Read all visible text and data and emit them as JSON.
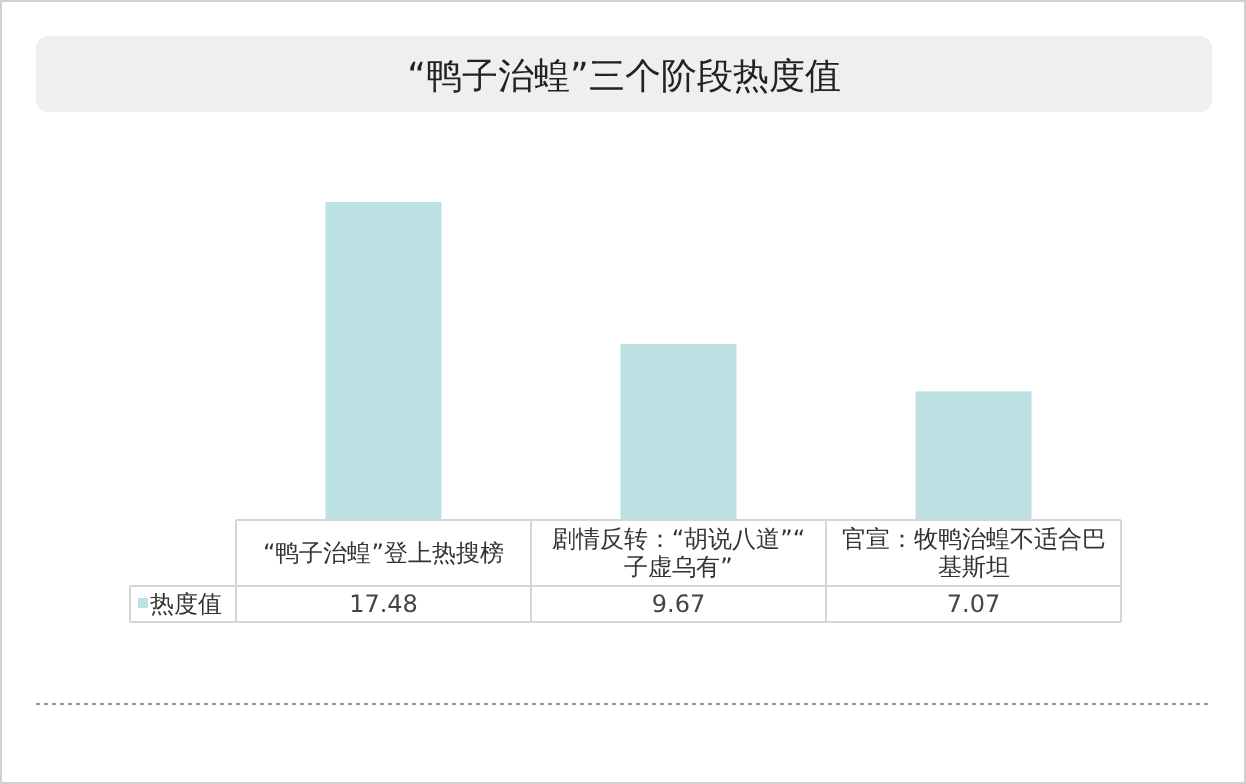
{
  "chart_data": {
    "type": "bar",
    "title": "“鸭子治蝗”三个阶段热度值",
    "categories": [
      "“鸭子治蝗”登上热搜榜",
      "剧情反转：“胡说八道”“子虚乌有”",
      "官宣：牧鸭治蝗不适合巴基斯坦"
    ],
    "series": [
      {
        "name": "热度值",
        "color": "#bde0e3",
        "values": [
          17.48,
          9.67,
          7.07
        ]
      }
    ],
    "data_labels": true
  }
}
